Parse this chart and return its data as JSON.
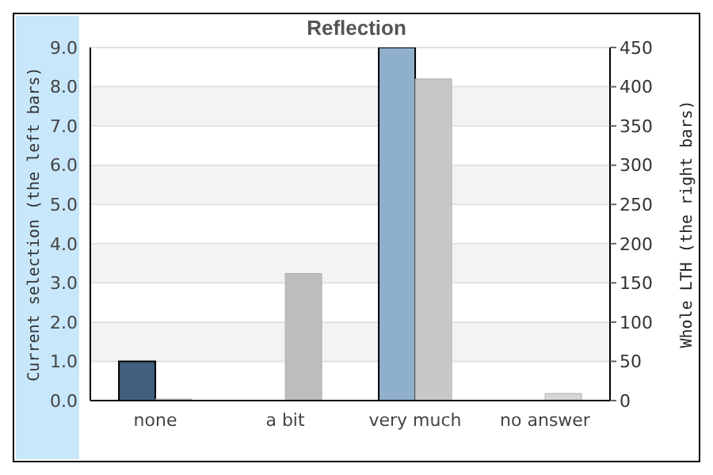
{
  "chart_data": {
    "type": "bar",
    "title": "Reflection",
    "ylabel": "Current selection (the left bars)",
    "y2label": "Whole LTH (the right bars)",
    "categories": [
      "none",
      "a bit",
      "very much",
      "no answer"
    ],
    "series": [
      {
        "colors": [
          "#3f5f7d",
          "#3f5f7d",
          "#8fb0cc",
          "#8fb0cc"
        ],
        "values": [
          1,
          0,
          9,
          0
        ]
      },
      {
        "colors": [
          "#c4c4c4",
          "#bdbdbd",
          "#c8c8c8",
          "#d6d6d6"
        ],
        "values": [
          2,
          162,
          410,
          9
        ],
        "axis": "y2"
      }
    ],
    "ylim": [
      0,
      9
    ],
    "yticks": [
      {
        "value": 0,
        "label": "0.0"
      },
      {
        "value": 1,
        "label": "1.0"
      },
      {
        "value": 2,
        "label": "2.0"
      },
      {
        "value": 3,
        "label": "3.0"
      },
      {
        "value": 4,
        "label": "4.0"
      },
      {
        "value": 5,
        "label": "5.0"
      },
      {
        "value": 6,
        "label": "6.0"
      },
      {
        "value": 7,
        "label": "7.0"
      },
      {
        "value": 8,
        "label": "8.0"
      },
      {
        "value": 9,
        "label": "9.0"
      }
    ],
    "y2lim": [
      0,
      450
    ],
    "y2ticks": [
      0,
      50,
      100,
      150,
      200,
      250,
      300,
      350,
      400,
      450
    ],
    "grid": "y"
  }
}
